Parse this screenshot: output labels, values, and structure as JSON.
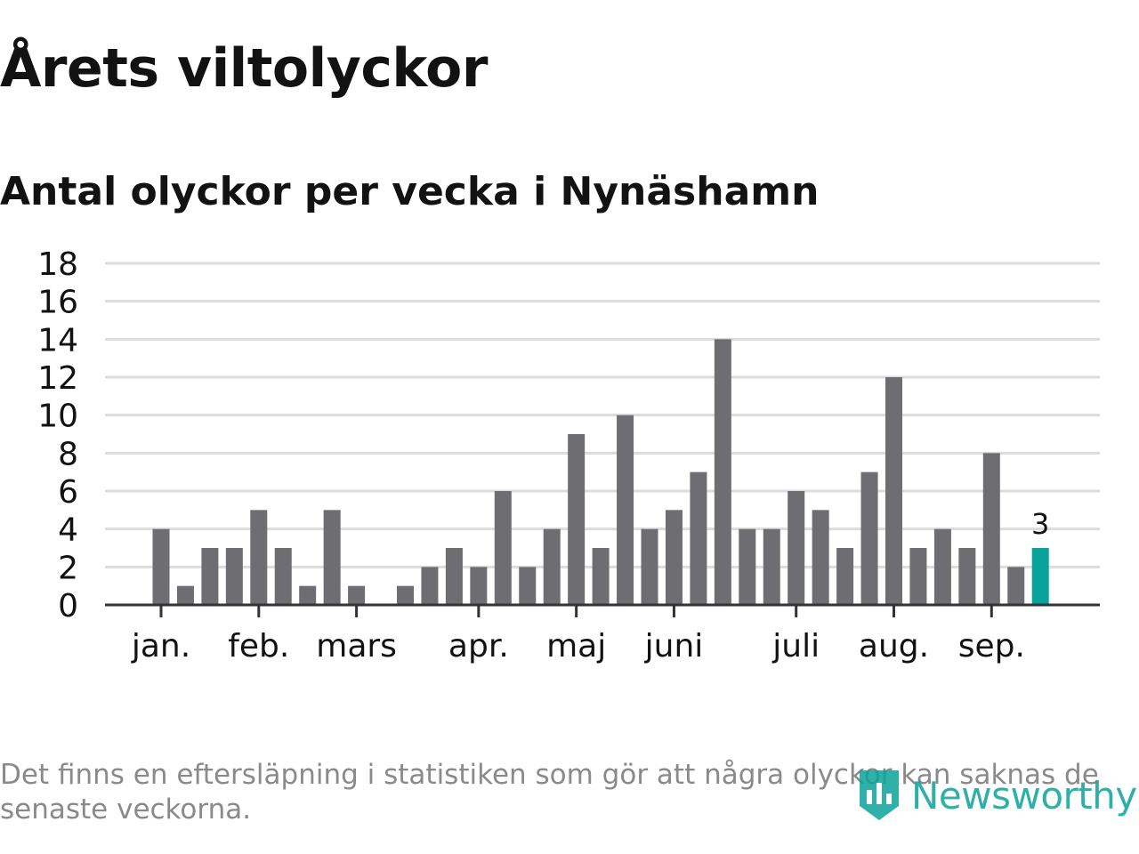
{
  "title": "Årets viltolyckor",
  "subtitle": "Antal olyckor per vecka i Nynäshamn",
  "footnote": "Det finns en eftersläpning i statistiken som gör att några olyckor kan saknas de senaste veckorna.",
  "brand": {
    "name": "Newsworthy",
    "icon": "newsworthy-logo-icon",
    "color": "#0aa39a"
  },
  "colors": {
    "bar": "#6e6d72",
    "highlight": "#0aa39a",
    "grid": "#dcdcdc",
    "axis": "#333333"
  },
  "chart_data": {
    "type": "bar",
    "ylim": [
      0,
      18
    ],
    "yticks": [
      0,
      2,
      4,
      6,
      8,
      10,
      12,
      14,
      16,
      18
    ],
    "grid": true,
    "values": [
      4,
      1,
      3,
      3,
      5,
      3,
      1,
      5,
      1,
      0,
      1,
      2,
      3,
      2,
      6,
      2,
      4,
      9,
      3,
      10,
      4,
      5,
      7,
      14,
      4,
      4,
      6,
      5,
      3,
      7,
      12,
      3,
      4,
      3,
      8,
      2,
      3
    ],
    "month_labels": [
      {
        "label": "jan.",
        "week_index": 0
      },
      {
        "label": "feb.",
        "week_index": 4
      },
      {
        "label": "mars",
        "week_index": 8
      },
      {
        "label": "apr.",
        "week_index": 13
      },
      {
        "label": "maj",
        "week_index": 17
      },
      {
        "label": "juni",
        "week_index": 21
      },
      {
        "label": "juli",
        "week_index": 26
      },
      {
        "label": "aug.",
        "week_index": 30
      },
      {
        "label": "sep.",
        "week_index": 34
      }
    ],
    "highlight_last": true,
    "last_value_label": "3"
  }
}
